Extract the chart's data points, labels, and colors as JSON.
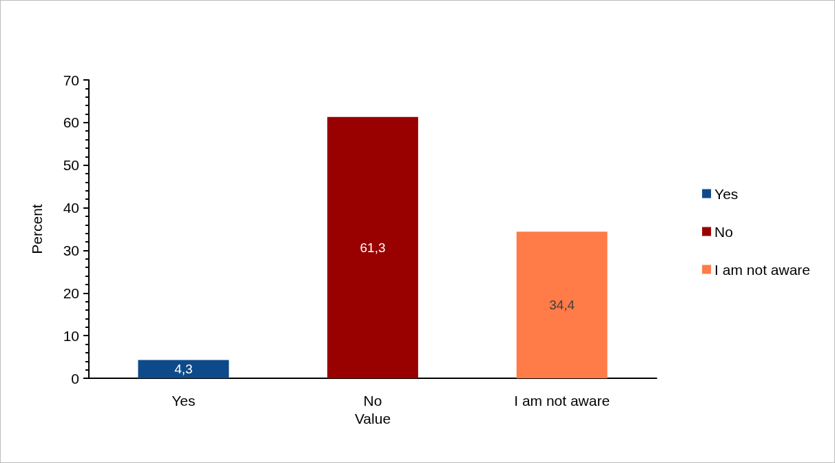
{
  "chart_data": {
    "type": "bar",
    "xlabel": "Value",
    "ylabel": "Percent",
    "categories": [
      "Yes",
      "No",
      "I am not aware"
    ],
    "series": [
      {
        "name": "Yes",
        "color": "#0e4a8a",
        "values": [
          4.3,
          null,
          null
        ],
        "value_labels": [
          "4,3",
          null,
          null
        ]
      },
      {
        "name": "No",
        "color": "#990000",
        "values": [
          null,
          61.3,
          null
        ],
        "value_labels": [
          null,
          "61,3",
          null
        ]
      },
      {
        "name": "I am not aware",
        "color": "#ff7b47",
        "values": [
          null,
          null,
          34.4
        ],
        "value_labels": [
          null,
          null,
          "34,4"
        ]
      }
    ],
    "ylim": [
      0,
      70
    ],
    "yticks": [
      0,
      10,
      20,
      30,
      40,
      50,
      60,
      70
    ],
    "grid": false,
    "legend": "right"
  }
}
